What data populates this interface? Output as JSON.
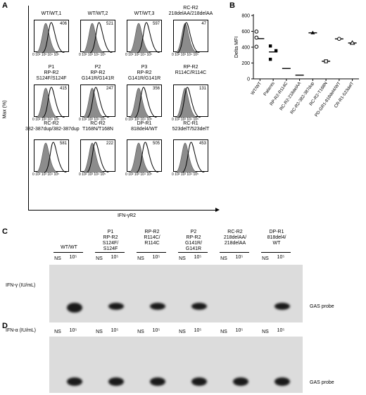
{
  "panels": {
    "a": "A",
    "b": "B",
    "c": "C",
    "d": "D"
  },
  "panel_a": {
    "y_axis_label": "Max (%)",
    "x_axis_label": "IFN-γR2",
    "x_ticks": "0 10² 10³ 10⁴ 10⁵",
    "plots": [
      {
        "title": "WT/WT,1",
        "mfi": "406"
      },
      {
        "title": "WT/WT,2",
        "mfi": "521"
      },
      {
        "title": "WT/WT,3",
        "mfi": "597"
      },
      {
        "title": "RC-R2\n218delAA/218delAA",
        "mfi": "47"
      },
      {
        "title": "P1\nRP-R2\nS124F/S124F",
        "mfi": "415"
      },
      {
        "title": "P2\nRP-R2\nG141R/G141R",
        "mfi": "247"
      },
      {
        "title": "P3\nRP-R2\nG141R/G141R",
        "mfi": "356"
      },
      {
        "title": "RP-R2\nR114C/R114C",
        "mfi": "131"
      },
      {
        "title": "RC-R2\n382-387dup/382-387dup",
        "mfi": "581"
      },
      {
        "title": "RC-R2\nT168N/T168N",
        "mfi": "222"
      },
      {
        "title": "DP-R1\n818del4/WT",
        "mfi": "505"
      },
      {
        "title": "RC-R1\n523delT/523delT",
        "mfi": "453"
      }
    ]
  },
  "chart_data": {
    "type": "scatter",
    "ylabel": "Delta MFI",
    "ylim": [
      0,
      800
    ],
    "yticks": [
      "0",
      "200",
      "400",
      "600",
      "800"
    ],
    "categories": [
      "WT/WT",
      "Patients",
      "RP-R2-R114C",
      "RC-R2-218delAA",
      "RC-R2-382-387dup",
      "RC-R2-T168N",
      "PD-GR1-818del4/WT",
      "CR-R1-523delT"
    ],
    "points": [
      {
        "cat": 0,
        "y": 597,
        "marker": "open-circle"
      },
      {
        "cat": 0,
        "y": 406,
        "marker": "open-circle"
      },
      {
        "cat": 0,
        "y": 521,
        "marker": "open-circle"
      },
      {
        "cat": 1,
        "y": 415,
        "marker": "square"
      },
      {
        "cat": 1,
        "y": 356,
        "marker": "square"
      },
      {
        "cat": 1,
        "y": 247,
        "marker": "square"
      },
      {
        "cat": 2,
        "y": 131,
        "marker": "none"
      },
      {
        "cat": 3,
        "y": 47,
        "marker": "none"
      },
      {
        "cat": 4,
        "y": 581,
        "marker": "triangle"
      },
      {
        "cat": 5,
        "y": 222,
        "marker": "open-square"
      },
      {
        "cat": 6,
        "y": 505,
        "marker": "open-circle"
      },
      {
        "cat": 7,
        "y": 453,
        "marker": "open-triangle"
      }
    ],
    "means": [
      {
        "cat": 0,
        "y": 508
      },
      {
        "cat": 1,
        "y": 340
      },
      {
        "cat": 2,
        "y": 131
      },
      {
        "cat": 3,
        "y": 47
      },
      {
        "cat": 4,
        "y": 581
      },
      {
        "cat": 5,
        "y": 222
      },
      {
        "cat": 6,
        "y": 505
      },
      {
        "cat": 7,
        "y": 453
      }
    ]
  },
  "panel_c": {
    "row_label": "IFN-γ (IU/mL)",
    "probe": "GAS probe",
    "groups": [
      {
        "title": "WT/WT"
      },
      {
        "title": "P1\nRP-R2\nS124F/\nS124F"
      },
      {
        "title": "RP-R2\nR114C/\nR114C"
      },
      {
        "title": "P2\nRP-R2\nG141R/\nG141R"
      },
      {
        "title": "RC-R2\n218delAA/\n218delAA"
      },
      {
        "title": "DP-R1\n818del4/\nWT"
      }
    ],
    "ns": "NS",
    "dose": "10⁵"
  },
  "panel_d": {
    "row_label": "IFN-α (IU/mL)",
    "probe": "GAS probe",
    "ns": "NS",
    "dose": "10⁵"
  }
}
